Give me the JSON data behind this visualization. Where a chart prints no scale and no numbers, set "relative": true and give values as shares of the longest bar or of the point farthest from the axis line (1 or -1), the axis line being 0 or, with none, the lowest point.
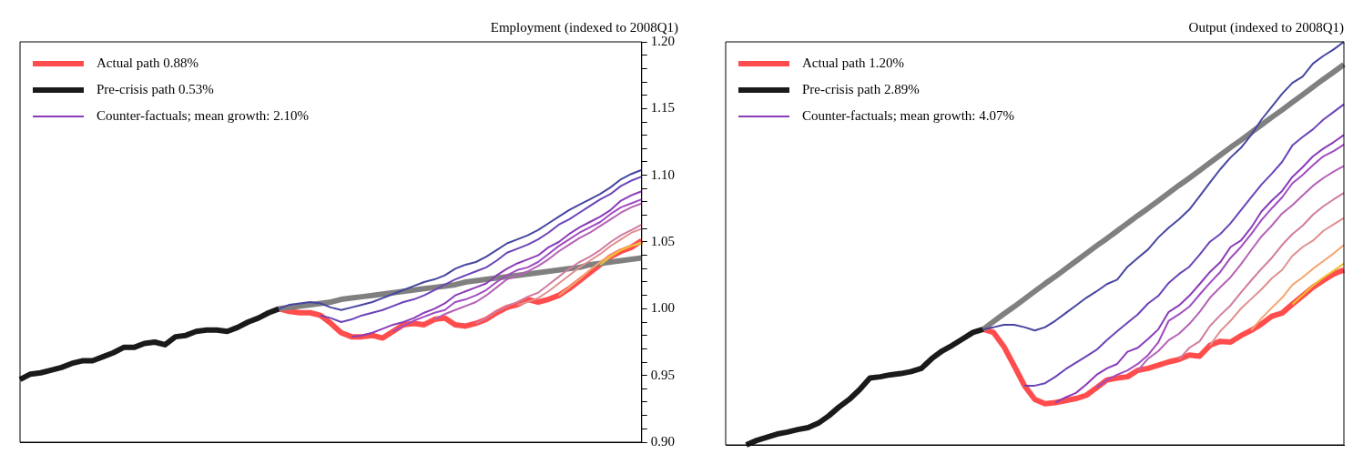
{
  "chart_data": [
    {
      "type": "line",
      "title": "Employment (indexed to 2008Q1)",
      "legend": "top left",
      "tick_labels": "y",
      "categories": [
        null,
        null,
        null,
        null,
        null,
        null,
        null,
        null,
        null,
        null,
        null,
        null,
        null,
        null,
        null,
        null,
        null,
        null,
        null,
        null,
        null,
        null,
        null,
        null,
        null,
        null,
        null,
        null,
        null,
        null,
        null,
        null,
        null,
        null,
        null,
        null,
        null,
        null,
        null,
        null,
        null,
        null,
        null,
        null,
        null,
        null,
        null,
        null,
        null,
        null,
        null,
        null,
        null,
        null,
        null,
        null,
        null,
        null,
        null,
        null,
        null
      ],
      "ylim": [
        0.9,
        1.2
      ],
      "yticks": [
        {
          "value": 0.9,
          "label": "0.90"
        },
        {
          "value": 0.91,
          "label": null
        },
        {
          "value": 0.92,
          "label": null
        },
        {
          "value": 0.93,
          "label": null
        },
        {
          "value": 0.94,
          "label": null
        },
        {
          "value": 0.95,
          "label": "0.95"
        },
        {
          "value": 0.96,
          "label": null
        },
        {
          "value": 0.97,
          "label": null
        },
        {
          "value": 0.98,
          "label": null
        },
        {
          "value": 0.99,
          "label": null
        },
        {
          "value": 1.0,
          "label": "1.00"
        },
        {
          "value": 1.01,
          "label": null
        },
        {
          "value": 1.02,
          "label": null
        },
        {
          "value": 1.03,
          "label": null
        },
        {
          "value": 1.04,
          "label": null
        },
        {
          "value": 1.05,
          "label": "1.05"
        },
        {
          "value": 1.06,
          "label": null
        },
        {
          "value": 1.07,
          "label": null
        },
        {
          "value": 1.08,
          "label": null
        },
        {
          "value": 1.09,
          "label": null
        },
        {
          "value": 1.1,
          "label": "1.10"
        },
        {
          "value": 1.11,
          "label": null
        },
        {
          "value": 1.12,
          "label": null
        },
        {
          "value": 1.13,
          "label": null
        },
        {
          "value": 1.14,
          "label": null
        },
        {
          "value": 1.15,
          "label": "1.15"
        },
        {
          "value": 1.16,
          "label": null
        },
        {
          "value": 1.17,
          "label": null
        },
        {
          "value": 1.18,
          "label": null
        },
        {
          "value": 1.19,
          "label": null
        },
        {
          "value": 1.2,
          "label": "1.20"
        }
      ],
      "series": [
        {
          "name": "Actual path 0.88%",
          "color": "#ff4d4d",
          "values": [
            null,
            null,
            null,
            null,
            null,
            null,
            null,
            null,
            null,
            null,
            null,
            null,
            null,
            null,
            null,
            null,
            null,
            null,
            null,
            null,
            null,
            null,
            null,
            null,
            null,
            1.0,
            0.998,
            0.997,
            0.997,
            0.995,
            0.989,
            0.982,
            0.979,
            0.979,
            0.98,
            0.978,
            0.983,
            0.988,
            0.989,
            0.988,
            0.992,
            0.993,
            0.988,
            0.987,
            0.989,
            0.992,
            0.997,
            1.001,
            1.003,
            1.007,
            1.005,
            1.007,
            1.01,
            1.015,
            1.021,
            1.027,
            1.033,
            1.039,
            1.043,
            1.046,
            1.051
          ]
        },
        {
          "name": "Pre-crisis path 0.53%",
          "color": "#1a1a1a",
          "values": [
            0.947,
            0.951,
            0.952,
            0.954,
            0.956,
            0.959,
            0.961,
            0.961,
            0.964,
            0.967,
            0.971,
            0.971,
            0.974,
            0.975,
            0.973,
            0.979,
            0.98,
            0.983,
            0.984,
            0.984,
            0.983,
            0.986,
            0.99,
            0.993,
            0.997,
            1.0,
            null,
            null,
            null,
            null,
            null,
            null,
            null,
            null,
            null,
            null,
            null,
            null,
            null,
            null,
            null,
            null,
            null,
            null,
            null,
            null,
            null,
            null,
            null,
            null,
            null,
            null,
            null,
            null,
            null,
            null,
            null,
            null,
            null,
            null,
            null
          ]
        },
        {
          "color": "#808080",
          "values": [
            null,
            null,
            null,
            null,
            null,
            null,
            null,
            null,
            null,
            null,
            null,
            null,
            null,
            null,
            null,
            null,
            null,
            null,
            null,
            null,
            null,
            null,
            null,
            null,
            null,
            1.0,
            1.001,
            1.002,
            1.003,
            1.004,
            1.005,
            1.007,
            1.008,
            1.009,
            1.01,
            1.011,
            1.012,
            1.013,
            1.014,
            1.015,
            1.016,
            1.017,
            1.018,
            1.02,
            1.021,
            1.022,
            1.023,
            1.024,
            1.025,
            1.026,
            1.027,
            1.028,
            1.029,
            1.03,
            1.031,
            1.033,
            1.034,
            1.035,
            1.036,
            1.037,
            1.038
          ]
        },
        {
          "color": "#4646a0",
          "values": [
            null,
            null,
            null,
            null,
            null,
            null,
            null,
            null,
            null,
            null,
            null,
            null,
            null,
            null,
            null,
            null,
            null,
            null,
            null,
            null,
            null,
            null,
            null,
            null,
            null,
            1.0,
            1.003,
            1.004,
            1.005,
            1.004,
            1.001,
            0.999,
            1.001,
            1.003,
            1.005,
            1.008,
            1.011,
            1.014,
            1.017,
            1.02,
            1.022,
            1.025,
            1.03,
            1.033,
            1.035,
            1.039,
            1.044,
            1.049,
            1.052,
            1.055,
            1.059,
            1.064,
            1.069,
            1.074,
            1.078,
            1.082,
            1.086,
            1.091,
            1.097,
            1.101,
            1.104
          ]
        },
        {
          "color": "#6a44b8",
          "values": [
            null,
            null,
            null,
            null,
            null,
            null,
            null,
            null,
            null,
            null,
            null,
            null,
            null,
            null,
            null,
            null,
            null,
            null,
            null,
            null,
            null,
            null,
            null,
            null,
            null,
            null,
            null,
            null,
            null,
            0.995,
            0.993,
            0.99,
            0.992,
            0.995,
            0.997,
            0.999,
            1.002,
            1.005,
            1.007,
            1.01,
            1.014,
            1.018,
            1.022,
            1.025,
            1.028,
            1.031,
            1.036,
            1.042,
            1.045,
            1.048,
            1.052,
            1.057,
            1.063,
            1.067,
            1.072,
            1.077,
            1.082,
            1.086,
            1.092,
            1.096,
            1.099
          ]
        },
        {
          "name": "Counter-factuals; mean growth: 2.10%",
          "color": "#8a3cb8",
          "values": [
            null,
            null,
            null,
            null,
            null,
            null,
            null,
            null,
            null,
            null,
            null,
            null,
            null,
            null,
            null,
            null,
            null,
            null,
            null,
            null,
            null,
            null,
            null,
            null,
            null,
            null,
            null,
            null,
            null,
            null,
            null,
            null,
            0.979,
            0.98,
            0.982,
            0.985,
            0.988,
            0.99,
            0.993,
            0.997,
            1.0,
            1.004,
            1.01,
            1.013,
            1.016,
            1.019,
            1.025,
            1.03,
            1.034,
            1.037,
            1.04,
            1.046,
            1.05,
            1.056,
            1.061,
            1.065,
            1.069,
            1.074,
            1.081,
            1.085,
            1.088
          ]
        },
        {
          "color": "#a04cc0",
          "values": [
            null,
            null,
            null,
            null,
            null,
            null,
            null,
            null,
            null,
            null,
            null,
            null,
            null,
            null,
            null,
            null,
            null,
            null,
            null,
            null,
            null,
            null,
            null,
            null,
            null,
            null,
            null,
            null,
            null,
            null,
            null,
            null,
            null,
            null,
            null,
            null,
            0.983,
            0.987,
            0.991,
            0.994,
            0.997,
            0.999,
            1.005,
            1.007,
            1.01,
            1.014,
            1.02,
            1.025,
            1.029,
            1.031,
            1.035,
            1.041,
            1.047,
            1.052,
            1.057,
            1.061,
            1.065,
            1.071,
            1.076,
            1.079,
            1.082
          ]
        },
        {
          "color": "#b462b6",
          "values": [
            null,
            null,
            null,
            null,
            null,
            null,
            null,
            null,
            null,
            null,
            null,
            null,
            null,
            null,
            null,
            null,
            null,
            null,
            null,
            null,
            null,
            null,
            null,
            null,
            null,
            null,
            null,
            null,
            null,
            null,
            null,
            null,
            null,
            null,
            null,
            null,
            null,
            null,
            null,
            null,
            0.992,
            0.996,
            0.999,
            1.002,
            1.005,
            1.01,
            1.016,
            1.022,
            1.025,
            1.028,
            1.032,
            1.037,
            1.043,
            1.048,
            1.053,
            1.057,
            1.062,
            1.067,
            1.072,
            1.076,
            1.079
          ]
        },
        {
          "color": "#d07ca0",
          "values": [
            null,
            null,
            null,
            null,
            null,
            null,
            null,
            null,
            null,
            null,
            null,
            null,
            null,
            null,
            null,
            null,
            null,
            null,
            null,
            null,
            null,
            null,
            null,
            null,
            null,
            null,
            null,
            null,
            null,
            null,
            null,
            null,
            null,
            null,
            null,
            null,
            null,
            null,
            null,
            null,
            null,
            null,
            null,
            null,
            0.989,
            0.993,
            0.998,
            1.002,
            1.005,
            1.009,
            1.012,
            1.018,
            1.024,
            1.03,
            1.035,
            1.039,
            1.044,
            1.05,
            1.055,
            1.059,
            1.063
          ]
        },
        {
          "color": "#e09090",
          "values": [
            null,
            null,
            null,
            null,
            null,
            null,
            null,
            null,
            null,
            null,
            null,
            null,
            null,
            null,
            null,
            null,
            null,
            null,
            null,
            null,
            null,
            null,
            null,
            null,
            null,
            null,
            null,
            null,
            null,
            null,
            null,
            null,
            null,
            null,
            null,
            null,
            null,
            null,
            null,
            null,
            null,
            null,
            null,
            null,
            null,
            null,
            null,
            null,
            1.003,
            1.005,
            1.008,
            1.013,
            1.019,
            1.025,
            1.031,
            1.036,
            1.041,
            1.047,
            1.052,
            1.057,
            1.06
          ]
        },
        {
          "color": "#f4a470",
          "values": [
            null,
            null,
            null,
            null,
            null,
            null,
            null,
            null,
            null,
            null,
            null,
            null,
            null,
            null,
            null,
            null,
            null,
            null,
            null,
            null,
            null,
            null,
            null,
            null,
            null,
            null,
            null,
            null,
            null,
            null,
            null,
            null,
            null,
            null,
            null,
            null,
            null,
            null,
            null,
            null,
            null,
            null,
            null,
            null,
            null,
            null,
            null,
            null,
            null,
            null,
            null,
            null,
            1.01,
            1.016,
            1.022,
            1.029,
            1.035,
            1.04,
            1.044,
            1.047,
            1.05
          ]
        },
        {
          "color": "#f0c030",
          "values": [
            null,
            null,
            null,
            null,
            null,
            null,
            null,
            null,
            null,
            null,
            null,
            null,
            null,
            null,
            null,
            null,
            null,
            null,
            null,
            null,
            null,
            null,
            null,
            null,
            null,
            null,
            null,
            null,
            null,
            null,
            null,
            null,
            null,
            null,
            null,
            null,
            null,
            null,
            null,
            null,
            null,
            null,
            null,
            null,
            null,
            null,
            null,
            null,
            null,
            null,
            null,
            null,
            null,
            null,
            null,
            null,
            1.033,
            1.039,
            1.044,
            1.047,
            1.049
          ]
        }
      ]
    },
    {
      "type": "line",
      "title": "Output (indexed to 2008Q1)",
      "legend": "top left",
      "tick_labels": false,
      "relative": true,
      "categories": [
        null,
        null,
        null,
        null,
        null,
        null,
        null,
        null,
        null,
        null,
        null,
        null,
        null,
        null,
        null,
        null,
        null,
        null,
        null,
        null,
        null,
        null,
        null,
        null,
        null,
        null,
        null,
        null,
        null,
        null,
        null,
        null,
        null,
        null,
        null,
        null,
        null,
        null,
        null,
        null,
        null,
        null,
        null,
        null,
        null,
        null,
        null,
        null,
        null,
        null,
        null,
        null,
        null,
        null,
        null,
        null,
        null,
        null,
        null,
        null,
        null
      ],
      "series": [
        {
          "name": "Actual path 1.20%",
          "color": "#ff4d4d",
          "values": [
            null,
            null,
            null,
            null,
            null,
            null,
            null,
            null,
            null,
            null,
            null,
            null,
            null,
            null,
            null,
            null,
            null,
            null,
            null,
            null,
            null,
            null,
            null,
            null,
            null,
            0.287,
            0.279,
            0.244,
            0.196,
            0.147,
            0.113,
            0.102,
            0.105,
            0.11,
            0.115,
            0.123,
            0.142,
            0.161,
            0.166,
            0.169,
            0.185,
            0.19,
            0.198,
            0.206,
            0.212,
            0.223,
            0.22,
            0.247,
            0.257,
            0.255,
            0.271,
            0.284,
            0.3,
            0.319,
            0.327,
            0.349,
            0.37,
            0.391,
            0.408,
            0.424,
            0.434
          ]
        },
        {
          "name": "Pre-crisis path 2.89%",
          "color": "#1a1a1a",
          "values": [
            null,
            null,
            0,
            0.011,
            0.019,
            0.027,
            0.032,
            0.038,
            0.043,
            0.054,
            0.072,
            0.094,
            0.113,
            0.137,
            0.166,
            0.169,
            0.174,
            0.177,
            0.182,
            0.19,
            0.214,
            0.233,
            0.247,
            0.263,
            0.279,
            0.287,
            null,
            null,
            null,
            null,
            null,
            null,
            null,
            null,
            null,
            null,
            null,
            null,
            null,
            null,
            null,
            null,
            null,
            null,
            null,
            null,
            null,
            null,
            null,
            null,
            null,
            null,
            null,
            null,
            null,
            null,
            null,
            null,
            null,
            null,
            null
          ]
        },
        {
          "color": "#808080",
          "values": [
            null,
            null,
            null,
            null,
            null,
            null,
            null,
            null,
            null,
            null,
            null,
            null,
            null,
            null,
            null,
            null,
            null,
            null,
            null,
            null,
            null,
            null,
            null,
            null,
            null,
            0.287,
            0.306,
            0.325,
            0.343,
            0.362,
            0.381,
            0.4,
            0.418,
            0.437,
            0.456,
            0.475,
            0.494,
            0.512,
            0.531,
            0.55,
            0.569,
            0.587,
            0.606,
            0.625,
            0.644,
            0.662,
            0.681,
            0.7,
            0.719,
            0.738,
            0.756,
            0.775,
            0.794,
            0.813,
            0.831,
            0.85,
            0.869,
            0.888,
            0.907,
            0.925,
            0.944
          ]
        },
        {
          "color": "#4646a0",
          "values": [
            null,
            null,
            null,
            null,
            null,
            null,
            null,
            null,
            null,
            null,
            null,
            null,
            null,
            null,
            null,
            null,
            null,
            null,
            null,
            null,
            null,
            null,
            null,
            null,
            null,
            0.287,
            0.292,
            0.298,
            0.298,
            0.292,
            0.284,
            0.292,
            0.308,
            0.327,
            0.346,
            0.365,
            0.381,
            0.399,
            0.41,
            0.442,
            0.464,
            0.485,
            0.515,
            0.539,
            0.56,
            0.584,
            0.617,
            0.651,
            0.684,
            0.713,
            0.737,
            0.769,
            0.807,
            0.839,
            0.871,
            0.898,
            0.914,
            0.946,
            0.965,
            0.981,
            1
          ]
        },
        {
          "color": "#6a44b8",
          "values": [
            null,
            null,
            null,
            null,
            null,
            null,
            null,
            null,
            null,
            null,
            null,
            null,
            null,
            null,
            null,
            null,
            null,
            null,
            null,
            null,
            null,
            null,
            null,
            null,
            null,
            null,
            null,
            null,
            null,
            0.147,
            0.147,
            0.153,
            0.169,
            0.188,
            0.204,
            0.22,
            0.236,
            0.26,
            0.282,
            0.303,
            0.324,
            0.351,
            0.37,
            0.402,
            0.424,
            0.442,
            0.472,
            0.504,
            0.523,
            0.55,
            0.582,
            0.614,
            0.646,
            0.673,
            0.702,
            0.743,
            0.764,
            0.783,
            0.807,
            0.826,
            0.845
          ]
        },
        {
          "name": "Counter-factuals; mean growth: 4.07%",
          "color": "#8a3cb8",
          "values": [
            null,
            null,
            null,
            null,
            null,
            null,
            null,
            null,
            null,
            null,
            null,
            null,
            null,
            null,
            null,
            null,
            null,
            null,
            null,
            null,
            null,
            null,
            null,
            null,
            null,
            null,
            null,
            null,
            null,
            null,
            null,
            null,
            0.105,
            0.118,
            0.129,
            0.15,
            0.174,
            0.19,
            0.201,
            0.231,
            0.241,
            0.263,
            0.287,
            0.33,
            0.346,
            0.37,
            0.399,
            0.429,
            0.453,
            0.491,
            0.507,
            0.539,
            0.579,
            0.606,
            0.63,
            0.665,
            0.689,
            0.716,
            0.735,
            0.751,
            0.769
          ]
        },
        {
          "color": "#a04cc0",
          "values": [
            null,
            null,
            null,
            null,
            null,
            null,
            null,
            null,
            null,
            null,
            null,
            null,
            null,
            null,
            null,
            null,
            null,
            null,
            null,
            null,
            null,
            null,
            null,
            null,
            null,
            null,
            null,
            null,
            null,
            null,
            null,
            null,
            null,
            null,
            null,
            null,
            0.142,
            0.161,
            0.174,
            0.185,
            0.201,
            0.223,
            0.255,
            0.308,
            0.324,
            0.343,
            0.373,
            0.402,
            0.429,
            0.464,
            0.491,
            0.523,
            0.558,
            0.587,
            0.614,
            0.649,
            0.67,
            0.694,
            0.716,
            0.729,
            0.745
          ]
        },
        {
          "color": "#b462b6",
          "values": [
            null,
            null,
            null,
            null,
            null,
            null,
            null,
            null,
            null,
            null,
            null,
            null,
            null,
            null,
            null,
            null,
            null,
            null,
            null,
            null,
            null,
            null,
            null,
            null,
            null,
            null,
            null,
            null,
            null,
            null,
            null,
            null,
            null,
            null,
            null,
            null,
            null,
            null,
            null,
            null,
            0.185,
            0.214,
            0.233,
            0.26,
            0.276,
            0.3,
            0.33,
            0.365,
            0.391,
            0.416,
            0.448,
            0.483,
            0.517,
            0.544,
            0.574,
            0.595,
            0.619,
            0.643,
            0.662,
            0.678,
            0.692
          ]
        },
        {
          "color": "#d07ca0",
          "values": [
            null,
            null,
            null,
            null,
            null,
            null,
            null,
            null,
            null,
            null,
            null,
            null,
            null,
            null,
            null,
            null,
            null,
            null,
            null,
            null,
            null,
            null,
            null,
            null,
            null,
            null,
            null,
            null,
            null,
            null,
            null,
            null,
            null,
            null,
            null,
            null,
            null,
            null,
            null,
            null,
            null,
            null,
            null,
            null,
            0.212,
            0.241,
            0.257,
            0.295,
            0.322,
            0.346,
            0.378,
            0.408,
            0.437,
            0.464,
            0.496,
            0.523,
            0.544,
            0.571,
            0.592,
            0.609,
            0.625
          ]
        },
        {
          "color": "#e09090",
          "values": [
            null,
            null,
            null,
            null,
            null,
            null,
            null,
            null,
            null,
            null,
            null,
            null,
            null,
            null,
            null,
            null,
            null,
            null,
            null,
            null,
            null,
            null,
            null,
            null,
            null,
            null,
            null,
            null,
            null,
            null,
            null,
            null,
            null,
            null,
            null,
            null,
            null,
            null,
            null,
            null,
            null,
            null,
            null,
            null,
            null,
            null,
            null,
            0.247,
            0.282,
            0.308,
            0.338,
            0.362,
            0.386,
            0.413,
            0.434,
            0.469,
            0.491,
            0.507,
            0.531,
            0.547,
            0.563
          ]
        },
        {
          "color": "#f4a470",
          "values": [
            null,
            null,
            null,
            null,
            null,
            null,
            null,
            null,
            null,
            null,
            null,
            null,
            null,
            null,
            null,
            null,
            null,
            null,
            null,
            null,
            null,
            null,
            null,
            null,
            null,
            null,
            null,
            null,
            null,
            null,
            null,
            null,
            null,
            null,
            null,
            null,
            null,
            null,
            null,
            null,
            null,
            null,
            null,
            null,
            null,
            null,
            null,
            null,
            null,
            null,
            null,
            0.284,
            0.314,
            0.34,
            0.365,
            0.397,
            0.416,
            0.437,
            0.456,
            0.475,
            0.496
          ]
        },
        {
          "color": "#f0c030",
          "values": [
            null,
            null,
            null,
            null,
            null,
            null,
            null,
            null,
            null,
            null,
            null,
            null,
            null,
            null,
            null,
            null,
            null,
            null,
            null,
            null,
            null,
            null,
            null,
            null,
            null,
            null,
            null,
            null,
            null,
            null,
            null,
            null,
            null,
            null,
            null,
            null,
            null,
            null,
            null,
            null,
            null,
            null,
            null,
            null,
            null,
            null,
            null,
            null,
            null,
            null,
            null,
            null,
            null,
            null,
            null,
            0.349,
            0.372,
            0.395,
            0.415,
            0.432,
            0.45
          ]
        }
      ]
    }
  ]
}
